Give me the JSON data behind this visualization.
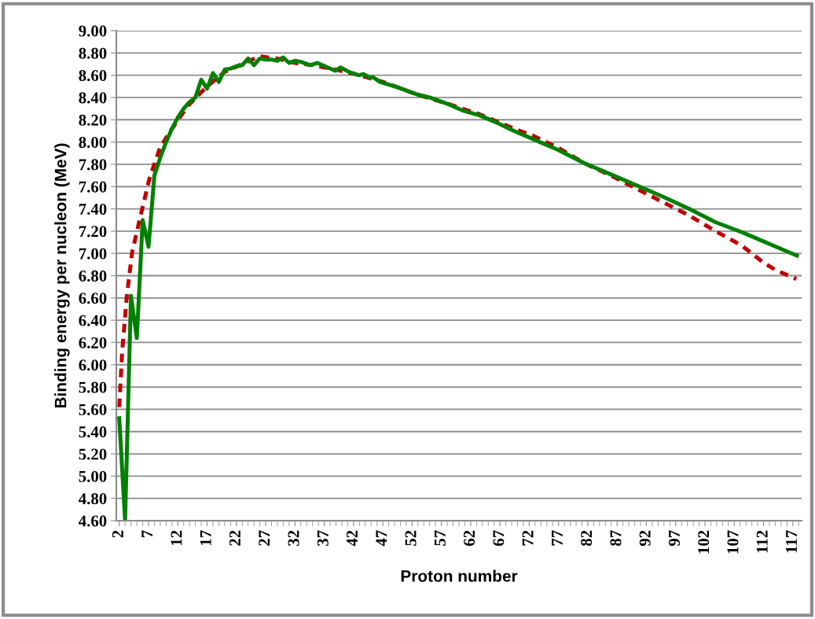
{
  "chart_data": {
    "type": "line",
    "xlabel": "Proton number",
    "ylabel": "Binding energy per nucleon (MeV)",
    "xlim": [
      1.5,
      118.5
    ],
    "xticks": [
      2,
      7,
      12,
      17,
      22,
      27,
      32,
      37,
      42,
      47,
      52,
      57,
      62,
      67,
      72,
      77,
      82,
      87,
      92,
      97,
      102,
      107,
      112,
      117
    ],
    "ylim": [
      4.6,
      9.0
    ],
    "yticks": [
      {
        "value": 4.6,
        "label": "4.60"
      },
      {
        "value": 4.8,
        "label": "4.80"
      },
      {
        "value": 5.0,
        "label": "5.00"
      },
      {
        "value": 5.2,
        "label": "5.20"
      },
      {
        "value": 5.4,
        "label": "5.40"
      },
      {
        "value": 5.6,
        "label": "5.60"
      },
      {
        "value": 5.8,
        "label": "5.80"
      },
      {
        "value": 6.0,
        "label": "6.00"
      },
      {
        "value": 6.2,
        "label": "6.20"
      },
      {
        "value": 6.4,
        "label": "6.40"
      },
      {
        "value": 6.6,
        "label": "6.60"
      },
      {
        "value": 6.8,
        "label": "6.80"
      },
      {
        "value": 7.0,
        "label": "7.00"
      },
      {
        "value": 7.2,
        "label": "7.20"
      },
      {
        "value": 7.4,
        "label": "7.40"
      },
      {
        "value": 7.6,
        "label": "7.60"
      },
      {
        "value": 7.8,
        "label": "7.80"
      },
      {
        "value": 8.0,
        "label": "8.00"
      },
      {
        "value": 8.2,
        "label": "8.20"
      },
      {
        "value": 8.4,
        "label": "8.40"
      },
      {
        "value": 8.6,
        "label": "8.60"
      },
      {
        "value": 8.8,
        "label": "8.80"
      },
      {
        "value": 9.0,
        "label": "9.00"
      }
    ],
    "grid": "y",
    "marker": "none",
    "series": [
      {
        "color": "#c00000",
        "line_style": "dashed",
        "x": [
          2,
          2.5,
          3.3,
          4.2,
          5.6,
          7.2,
          8.9,
          10.6,
          13.8,
          17,
          20,
          23,
          25.9,
          29,
          32,
          35,
          39,
          43,
          47,
          52.7,
          57.7,
          63.5,
          69.4,
          72.5,
          76.9,
          81.4,
          85.9,
          92.2,
          95.2,
          99.3,
          103.8,
          108.3,
          111.9,
          114.1,
          117.6
        ],
        "values": [
          5.62,
          6.12,
          6.62,
          7.01,
          7.33,
          7.68,
          7.94,
          8.09,
          8.33,
          8.5,
          8.63,
          8.7,
          8.77,
          8.75,
          8.71,
          8.69,
          8.65,
          8.6,
          8.54,
          8.43,
          8.35,
          8.25,
          8.12,
          8.06,
          7.95,
          7.81,
          7.7,
          7.53,
          7.45,
          7.34,
          7.2,
          7.07,
          6.92,
          6.85,
          6.77
        ]
      },
      {
        "color": "#008000",
        "line_style": "solid",
        "x": [
          2,
          3,
          4,
          5,
          6,
          7,
          8,
          9,
          10,
          11,
          12,
          13,
          14,
          15,
          16,
          17,
          18,
          19,
          20,
          21,
          22,
          23,
          24,
          25,
          26,
          27,
          28,
          29,
          30,
          31,
          32,
          33,
          34.6,
          35.8,
          38.9,
          39.8,
          41.2,
          42.9,
          43.7,
          44.7,
          45.4,
          46.5,
          49.6,
          52.7,
          55,
          57.7,
          60.8,
          63.5,
          66.2,
          69.4,
          72.5,
          76.9,
          81.4,
          85.9,
          91.7,
          94.8,
          99.3,
          103.8,
          108.3,
          111.9,
          115,
          117.7
        ],
        "values": [
          5.52,
          4.6,
          6.62,
          6.24,
          7.3,
          7.06,
          7.7,
          7.86,
          8.0,
          8.12,
          8.22,
          8.3,
          8.36,
          8.4,
          8.56,
          8.48,
          8.62,
          8.54,
          8.65,
          8.66,
          8.68,
          8.69,
          8.75,
          8.69,
          8.75,
          8.74,
          8.74,
          8.73,
          8.76,
          8.71,
          8.73,
          8.72,
          8.69,
          8.71,
          8.64,
          8.67,
          8.63,
          8.6,
          8.61,
          8.58,
          8.58,
          8.54,
          8.49,
          8.43,
          8.4,
          8.35,
          8.28,
          8.24,
          8.18,
          8.1,
          8.03,
          7.93,
          7.81,
          7.71,
          7.58,
          7.51,
          7.4,
          7.28,
          7.19,
          7.11,
          7.04,
          6.98
        ]
      }
    ]
  }
}
